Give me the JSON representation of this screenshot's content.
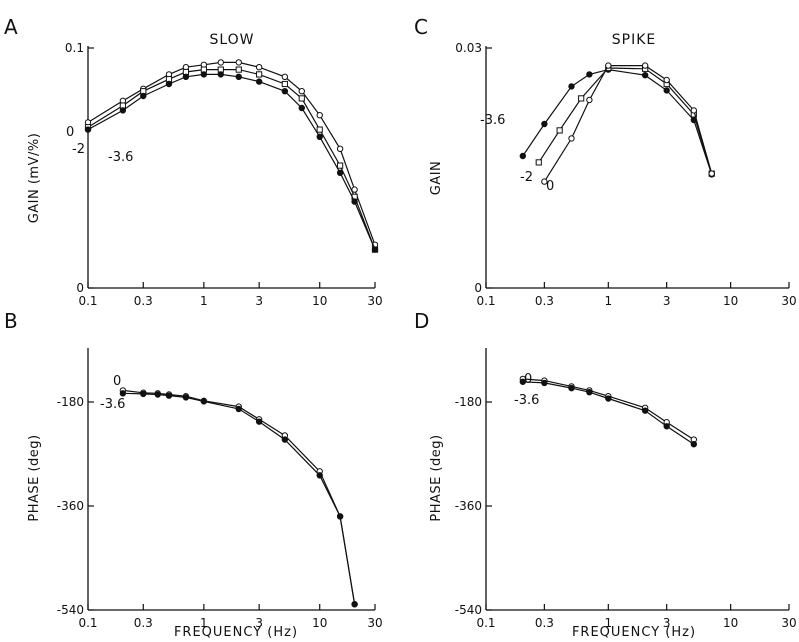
{
  "chart_data": [
    {
      "panel": "A",
      "type": "line",
      "title": "SLOW",
      "ylabel": "GAIN   (mV/%)",
      "xlabel": "",
      "x_scale": "log",
      "xlim": [
        0.1,
        30
      ],
      "ylim": [
        0,
        0.1
      ],
      "x_ticks": [
        "0.1",
        "0.3",
        "1",
        "3",
        "10",
        "30"
      ],
      "y_ticks": [
        {
          "value": 0,
          "label": "0"
        },
        {
          "value": 0.1,
          "label": "0.1"
        }
      ],
      "series": [
        {
          "name": "0",
          "marker": "open-circle",
          "x": [
            0.1,
            0.2,
            0.3,
            0.5,
            0.7,
            1,
            1.4,
            2,
            3,
            5,
            7,
            10,
            15,
            20,
            30
          ],
          "y": [
            0.069,
            0.078,
            0.083,
            0.089,
            0.092,
            0.093,
            0.094,
            0.094,
            0.092,
            0.088,
            0.082,
            0.072,
            0.058,
            0.041,
            0.018
          ]
        },
        {
          "name": "-2",
          "marker": "open-square",
          "x": [
            0.1,
            0.2,
            0.3,
            0.5,
            0.7,
            1,
            1.4,
            2,
            3,
            5,
            7,
            10,
            15,
            20,
            30
          ],
          "y": [
            0.067,
            0.076,
            0.082,
            0.087,
            0.09,
            0.091,
            0.091,
            0.091,
            0.089,
            0.085,
            0.079,
            0.066,
            0.051,
            0.038,
            0.016
          ]
        },
        {
          "name": "-3.6",
          "marker": "filled-circle",
          "x": [
            0.1,
            0.2,
            0.3,
            0.5,
            0.7,
            1,
            1.4,
            2,
            3,
            5,
            7,
            10,
            15,
            20,
            30
          ],
          "y": [
            0.066,
            0.074,
            0.08,
            0.085,
            0.088,
            0.089,
            0.089,
            0.088,
            0.086,
            0.082,
            0.075,
            0.063,
            0.048,
            0.036,
            0.016
          ]
        }
      ]
    },
    {
      "panel": "B",
      "type": "line",
      "title": "",
      "ylabel": "PHASE   (deg)",
      "xlabel": "FREQUENCY  (Hz)",
      "x_scale": "log",
      "xlim": [
        0.1,
        30
      ],
      "ylim": [
        -540,
        -90
      ],
      "x_ticks": [
        "0.1",
        "0.3",
        "1",
        "3",
        "10",
        "30"
      ],
      "y_ticks": [
        {
          "value": -180,
          "label": "-180"
        },
        {
          "value": -360,
          "label": "-360"
        },
        {
          "value": -540,
          "label": "-540"
        }
      ],
      "series": [
        {
          "name": "0",
          "marker": "open-circle",
          "x": [
            0.2,
            0.3,
            0.4,
            0.5,
            0.7,
            1,
            2,
            3,
            5,
            10,
            15,
            20
          ],
          "y": [
            -160,
            -164,
            -165,
            -167,
            -170,
            -178,
            -188,
            -210,
            -238,
            -300,
            -378,
            -530
          ]
        },
        {
          "name": "-3.6",
          "marker": "filled-circle",
          "x": [
            0.2,
            0.3,
            0.4,
            0.5,
            0.7,
            1,
            2,
            3,
            5,
            10,
            15,
            20
          ],
          "y": [
            -165,
            -166,
            -167,
            -169,
            -172,
            -179,
            -192,
            -214,
            -245,
            -307,
            -378,
            -530
          ]
        }
      ]
    },
    {
      "panel": "C",
      "type": "line",
      "title": "SPIKE",
      "ylabel": "GAIN",
      "xlabel": "",
      "x_scale": "log",
      "xlim": [
        0.1,
        30
      ],
      "ylim": [
        0,
        0.03
      ],
      "x_ticks": [
        "0.1",
        "0.3",
        "1",
        "3",
        "10",
        "30"
      ],
      "y_ticks": [
        {
          "value": 0,
          "label": "0"
        },
        {
          "value": 0.03,
          "label": "0.03"
        }
      ],
      "series": [
        {
          "name": "-3.6",
          "marker": "filled-circle",
          "x": [
            0.2,
            0.3,
            0.5,
            0.7,
            1,
            2,
            3,
            5,
            7
          ],
          "y": [
            0.0165,
            0.0205,
            0.0252,
            0.0267,
            0.0273,
            0.0266,
            0.0247,
            0.021,
            0.0142
          ]
        },
        {
          "name": "-2",
          "marker": "open-square",
          "x": [
            0.27,
            0.4,
            0.6,
            1,
            2,
            3,
            5,
            7
          ],
          "y": [
            0.0157,
            0.0197,
            0.0237,
            0.0275,
            0.0274,
            0.0255,
            0.0217,
            0.0143
          ]
        },
        {
          "name": "0",
          "marker": "open-circle",
          "x": [
            0.3,
            0.5,
            0.7,
            1,
            2,
            3,
            5,
            7
          ],
          "y": [
            0.0133,
            0.0187,
            0.0235,
            0.0278,
            0.0278,
            0.026,
            0.0222,
            0.0143
          ]
        }
      ]
    },
    {
      "panel": "D",
      "type": "line",
      "title": "",
      "ylabel": "PHASE   (deg)",
      "xlabel": "FREQUENCY  (Hz)",
      "x_scale": "log",
      "xlim": [
        0.1,
        30
      ],
      "ylim": [
        -540,
        -90
      ],
      "x_ticks": [
        "0.1",
        "0.3",
        "1",
        "3",
        "10",
        "30"
      ],
      "y_ticks": [
        {
          "value": -180,
          "label": "-180"
        },
        {
          "value": -360,
          "label": "-360"
        },
        {
          "value": -540,
          "label": "-540"
        }
      ],
      "series": [
        {
          "name": "0",
          "marker": "open-circle",
          "x": [
            0.2,
            0.3,
            0.5,
            0.7,
            1,
            2,
            3,
            5
          ],
          "y": [
            -140,
            -143,
            -153,
            -160,
            -170,
            -190,
            -215,
            -245
          ]
        },
        {
          "name": "-3.6",
          "marker": "filled-circle",
          "x": [
            0.2,
            0.3,
            0.5,
            0.7,
            1,
            2,
            3,
            5
          ],
          "y": [
            -145,
            -147,
            -156,
            -163,
            -174,
            -195,
            -222,
            -253
          ]
        }
      ]
    }
  ]
}
